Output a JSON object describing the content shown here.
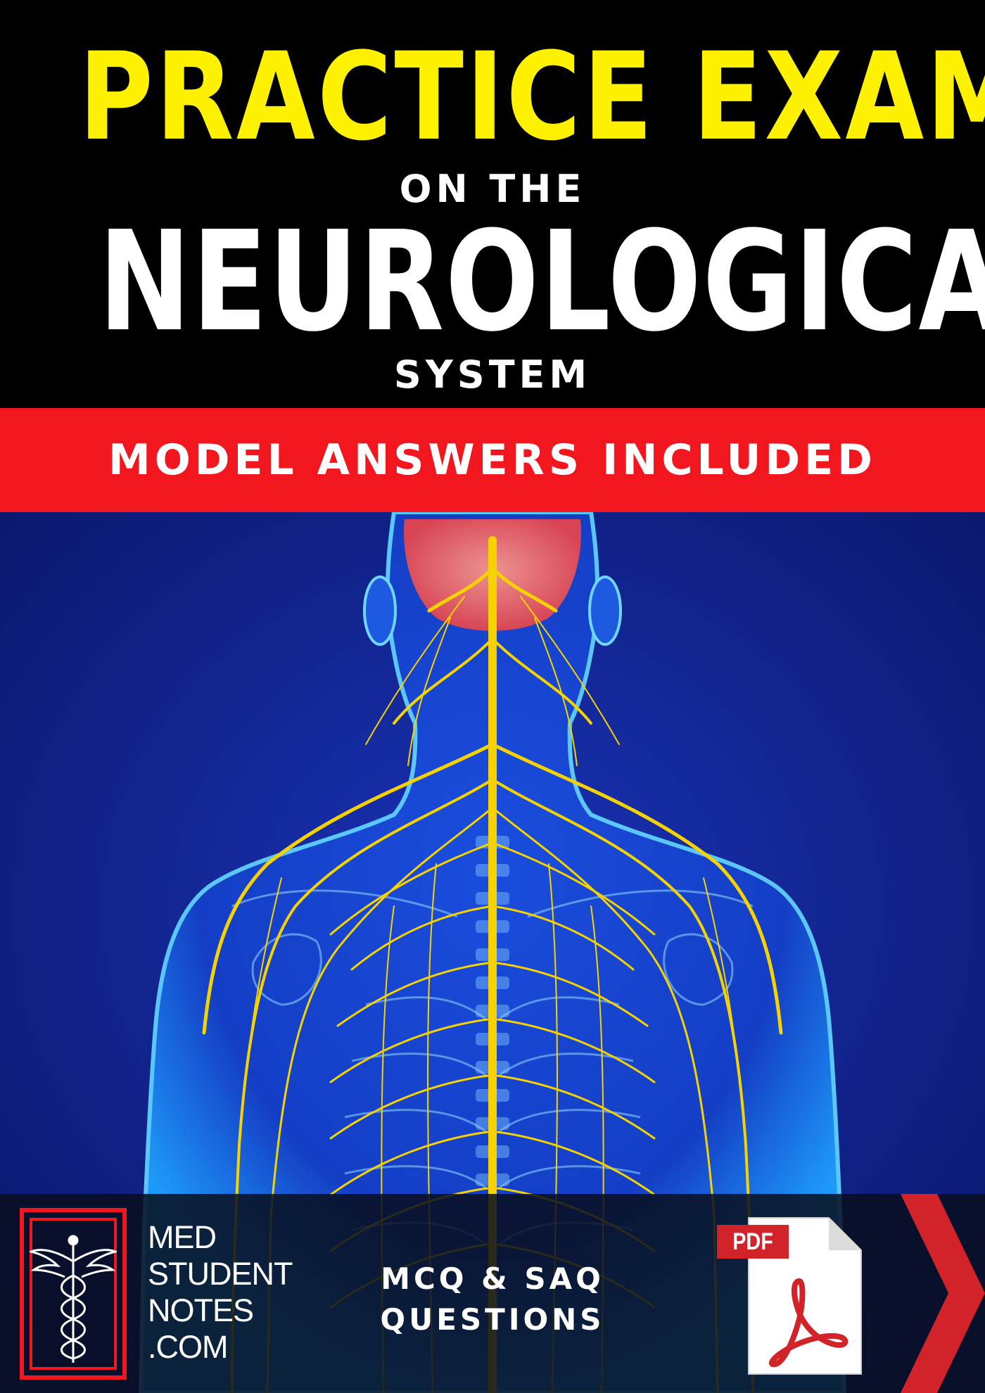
{
  "cover": {
    "title_line1": "PRACTICE EXAMS",
    "title_connector": "ON THE",
    "title_line2": "NEUROLOGICAL",
    "title_line3": "SYSTEM",
    "banner": "MODEL ANSWERS INCLUDED"
  },
  "footer": {
    "brand_lines": [
      "MED",
      "STUDENT",
      "NOTES",
      ".COM"
    ],
    "question_types": [
      "MCQ & SAQ",
      "QUESTIONS"
    ],
    "file_badge": "PDF"
  },
  "colors": {
    "yellow_title": "#FFF200",
    "white": "#FFFFFF",
    "banner_red": "#F2161E",
    "background_blue": "#0E1E7E",
    "nerve_yellow": "#F6D200",
    "pdf_red": "#D2232A",
    "black": "#000000"
  },
  "icons": {
    "logo": "caduceus-icon",
    "file": "pdf-file-icon",
    "arrow": "chevron-right-icon"
  }
}
